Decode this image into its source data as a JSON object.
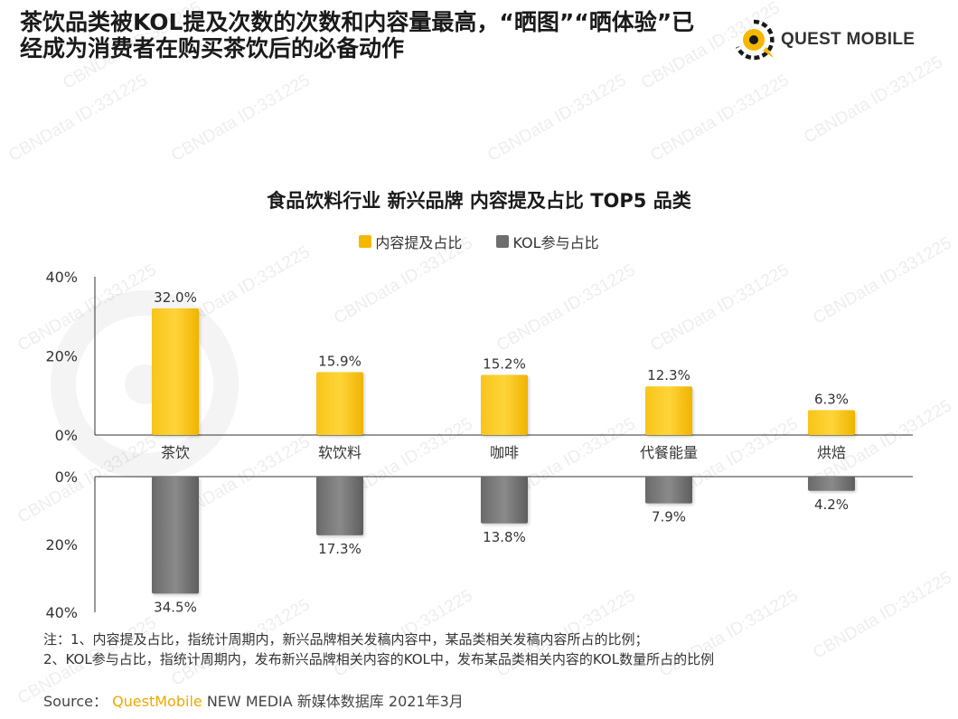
{
  "header": {
    "title_line1": "茶饮品类被KOL提及次数的次数和内容量最高，“晒图”“晒体验”已",
    "title_line2": "经成为消费者在购买茶饮后的必备动作",
    "brand": "QUEST MOBILE"
  },
  "watermark_text": "CBNData ID:331225",
  "colors": {
    "accent": "#f5b800",
    "kol": "#6e6e6e"
  },
  "chart_data": {
    "type": "bar",
    "title": "食品饮料行业 新兴品牌 内容提及占比 TOP5 品类",
    "categories": [
      "茶饮",
      "软饮料",
      "咖啡",
      "代餐能量",
      "烘焙"
    ],
    "series": [
      {
        "name": "内容提及占比",
        "values": [
          32.0,
          15.9,
          15.2,
          12.3,
          6.3
        ],
        "labels": [
          "32.0%",
          "15.9%",
          "15.2%",
          "12.3%",
          "6.3%"
        ]
      },
      {
        "name": "KOL参与占比",
        "values": [
          34.5,
          17.3,
          13.8,
          7.9,
          4.2
        ],
        "labels": [
          "34.5%",
          "17.3%",
          "13.8%",
          "7.9%",
          "4.2%"
        ]
      }
    ],
    "ylim": [
      0,
      40
    ],
    "top_ticks": [
      "40%",
      "20%",
      "0%"
    ],
    "bottom_ticks": [
      "0%",
      "20%",
      "40%"
    ],
    "legend_position": "top-center"
  },
  "notes": {
    "line1": "注：1、内容提及占比，指统计周期内，新兴品牌相关发稿内容中，某品类相关发稿内容所占的比例；",
    "line2": "2、KOL参与占比，指统计周期内，发布新兴品牌相关内容的KOL中，发布某品类相关内容的KOL数量所占的比例"
  },
  "source": {
    "label": "Source：",
    "brand": "QuestMobile",
    "rest": " NEW MEDIA 新媒体数据库 2021年3月"
  }
}
